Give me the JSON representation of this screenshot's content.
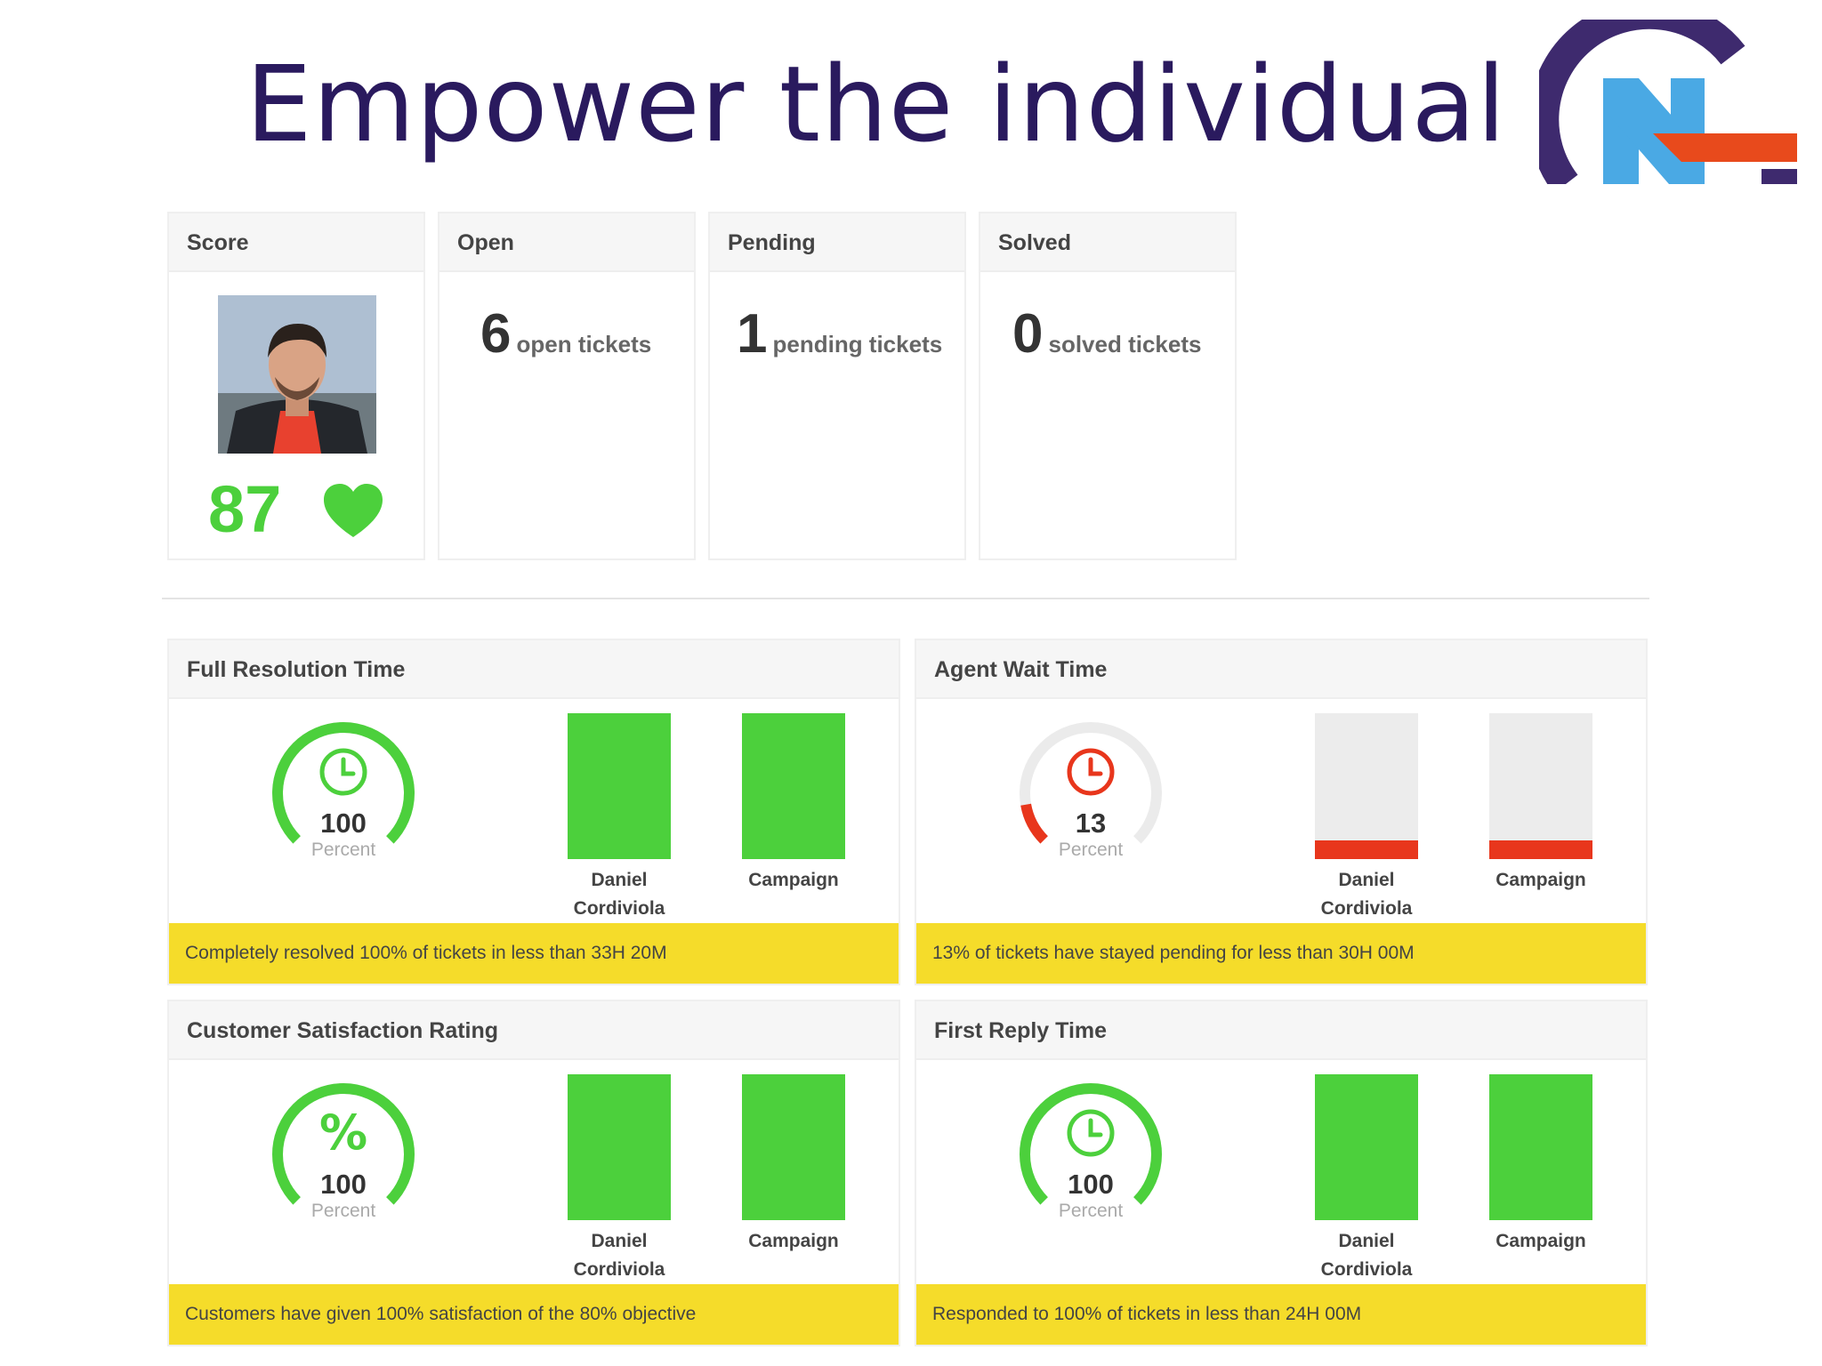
{
  "slide": {
    "title": "Empower the individual"
  },
  "colors": {
    "title": "#2a1a5e",
    "good": "#4cd03c",
    "bad": "#e8361c",
    "track": "#ececec",
    "note_bg": "#f5dc2a",
    "logo_purple": "#3e2a6e",
    "logo_blue": "#4aa9e4",
    "logo_orange": "#e84a1c"
  },
  "summary": {
    "score": {
      "header": "Score",
      "value": "87",
      "icon": "heart-icon",
      "avatar": "agent-photo"
    },
    "open": {
      "header": "Open",
      "count": "6",
      "label": "open tickets"
    },
    "pending": {
      "header": "Pending",
      "count": "1",
      "label": "pending tickets"
    },
    "solved": {
      "header": "Solved",
      "count": "0",
      "label": "solved tickets"
    }
  },
  "metrics": [
    {
      "title": "Full Resolution Time",
      "icon": "clock-icon",
      "value": "100",
      "unit": "Percent",
      "gauge_fraction": 1.0,
      "status": "good",
      "bars": [
        {
          "label_line1": "Daniel",
          "label_line2": "Cordiviola",
          "fraction": 1.0
        },
        {
          "label_line1": "Campaign",
          "label_line2": "",
          "fraction": 1.0
        }
      ],
      "note": "Completely resolved 100% of tickets in less than 33H 20M"
    },
    {
      "title": "Agent Wait Time",
      "icon": "clock-icon",
      "value": "13",
      "unit": "Percent",
      "gauge_fraction": 0.13,
      "status": "bad",
      "bars": [
        {
          "label_line1": "Daniel",
          "label_line2": "Cordiviola",
          "fraction": 0.13
        },
        {
          "label_line1": "Campaign",
          "label_line2": "",
          "fraction": 0.13
        }
      ],
      "note": "13% of tickets have stayed pending for less than 30H 00M"
    },
    {
      "title": "Customer Satisfaction Rating",
      "icon": "percent-icon",
      "value": "100",
      "unit": "Percent",
      "gauge_fraction": 1.0,
      "status": "good",
      "bars": [
        {
          "label_line1": "Daniel",
          "label_line2": "Cordiviola",
          "fraction": 1.0
        },
        {
          "label_line1": "Campaign",
          "label_line2": "",
          "fraction": 1.0
        }
      ],
      "note": "Customers have given 100% satisfaction of the 80% objective"
    },
    {
      "title": "First Reply Time",
      "icon": "clock-icon",
      "value": "100",
      "unit": "Percent",
      "gauge_fraction": 1.0,
      "status": "good",
      "bars": [
        {
          "label_line1": "Daniel",
          "label_line2": "Cordiviola",
          "fraction": 1.0
        },
        {
          "label_line1": "Campaign",
          "label_line2": "",
          "fraction": 1.0
        }
      ],
      "note": "Responded to 100% of tickets in less than 24H 00M"
    }
  ]
}
